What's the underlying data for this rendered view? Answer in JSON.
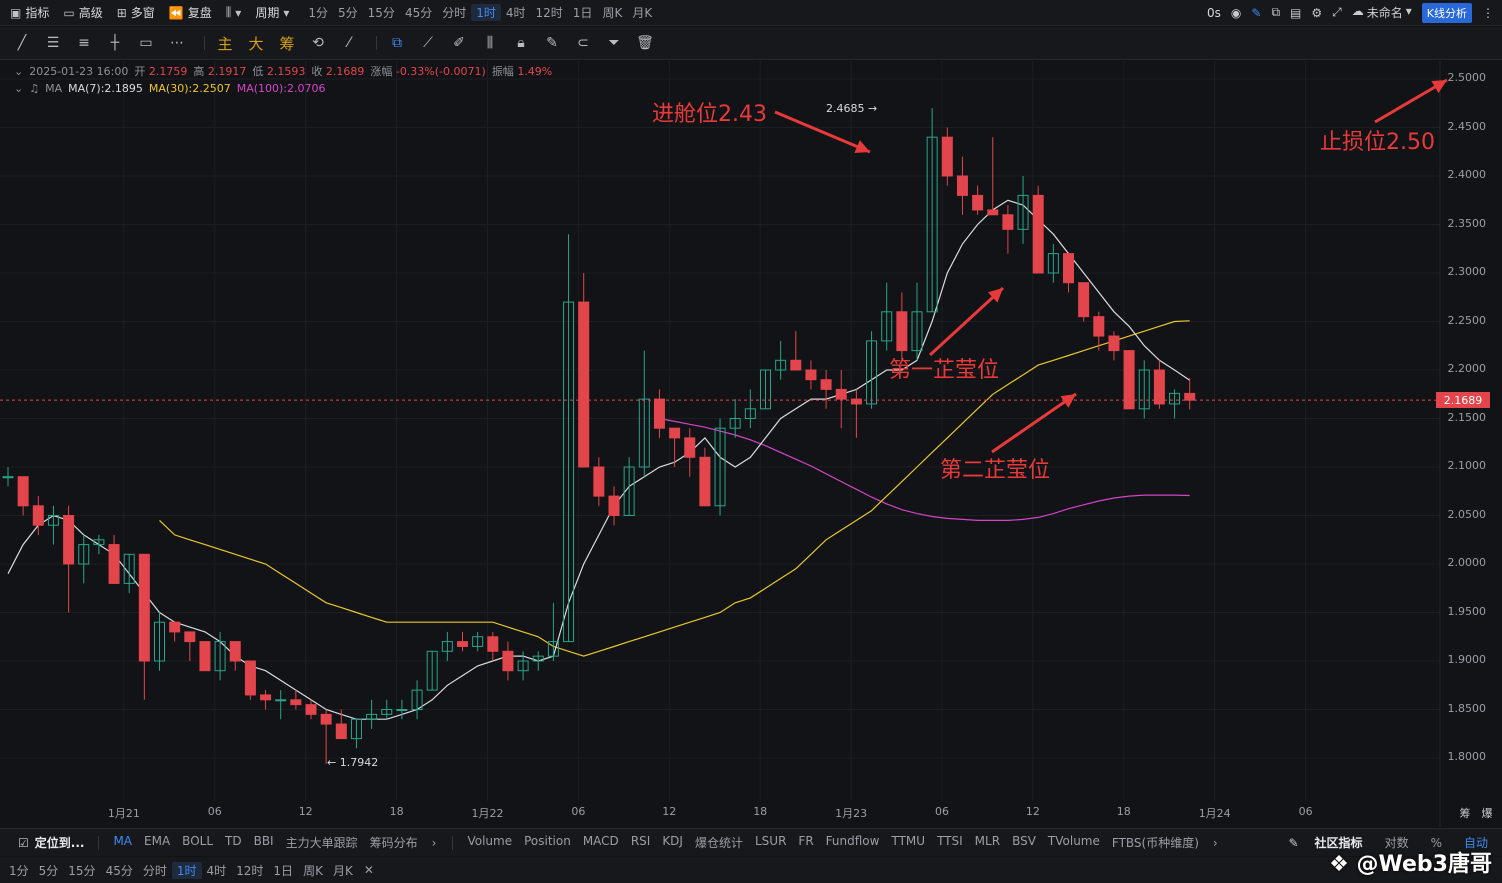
{
  "topbar": {
    "indicator": "指标",
    "advanced": "高级",
    "multi_window": "多窗",
    "replay": "复盘",
    "period": "周期",
    "intervals": [
      "1分",
      "5分",
      "15分",
      "45分",
      "分时",
      "1时",
      "4时",
      "12时",
      "1日",
      "周K",
      "月K"
    ],
    "active_interval": "1时",
    "countdown": "0s",
    "layout_name": "未命名",
    "kline_analysis": "K线分析"
  },
  "drawbar": {
    "main_label": "主",
    "big_label": "大",
    "chip_label": "筹"
  },
  "legend": {
    "datetime": "2025-01-23 16:00",
    "open_label": "开",
    "open": "2.1759",
    "high_label": "高",
    "high": "2.1917",
    "low_label": "低",
    "low": "2.1593",
    "close_label": "收",
    "close": "2.1689",
    "change_label": "涨幅",
    "change": "-0.33%(-0.0071)",
    "amp_label": "振幅",
    "amp": "1.49%",
    "ma_title": "MA",
    "ma7": "MA(7):2.1895",
    "ma30": "MA(30):2.2507",
    "ma100": "MA(100):2.0706"
  },
  "price_tag": "2.1689",
  "markers": {
    "high": "2.4685 →",
    "low": "← 1.7942"
  },
  "annotations": {
    "entry": "进舱位2.43",
    "stop": "止损位2.50",
    "first": "第一芷莹位",
    "second": "第二芷莹位"
  },
  "indicators_bar": {
    "locate": "定位到...",
    "main_inds": [
      "MA",
      "EMA",
      "BOLL",
      "TD",
      "BBI",
      "主力大单跟踪",
      "筹码分布"
    ],
    "sub_inds": [
      "Volume",
      "Position",
      "MACD",
      "RSI",
      "KDJ",
      "爆仓统计",
      "LSUR",
      "FR",
      "Fundflow",
      "TTMU",
      "TTSI",
      "MLR",
      "BSV",
      "TVolume",
      "FTBS(币种维度)"
    ],
    "community": "社区指标",
    "log": "对数",
    "percent": "%",
    "auto": "自动"
  },
  "bottom_intervals": [
    "1分",
    "5分",
    "15分",
    "45分",
    "分时",
    "1时",
    "4时",
    "12时",
    "1日",
    "周K",
    "月K"
  ],
  "watermark": "@Web3唐哥",
  "colors": {
    "up": "#27a58a",
    "down": "#e3454c",
    "ma7": "#d9dbe0",
    "ma30": "#e8c62e",
    "ma100": "#d544c8",
    "annot": "#e83a3a"
  },
  "chart_data": {
    "type": "candlestick",
    "interval": "1h",
    "ylim": [
      1.77,
      2.52
    ],
    "y_ticks": [
      "2.5000",
      "2.4500",
      "2.4000",
      "2.3500",
      "2.3000",
      "2.2500",
      "2.2000",
      "2.1500",
      "2.1000",
      "2.0500",
      "2.0000",
      "1.9500",
      "1.9000",
      "1.8500",
      "1.8000"
    ],
    "x_ticks": [
      {
        "label": "1月21",
        "h": 6
      },
      {
        "label": "06",
        "h": 12
      },
      {
        "label": "12",
        "h": 18
      },
      {
        "label": "18",
        "h": 24
      },
      {
        "label": "1月22",
        "h": 30
      },
      {
        "label": "06",
        "h": 36
      },
      {
        "label": "12",
        "h": 42
      },
      {
        "label": "18",
        "h": 48
      },
      {
        "label": "1月23",
        "h": 54
      },
      {
        "label": "06",
        "h": 60
      },
      {
        "label": "12",
        "h": 66
      },
      {
        "label": "18",
        "h": 72
      },
      {
        "label": "1月24",
        "h": 78
      },
      {
        "label": "06",
        "h": 84
      }
    ],
    "right_labels": [
      "筹",
      "爆"
    ],
    "candles": [
      [
        2.09,
        2.1,
        2.08,
        2.09
      ],
      [
        2.09,
        2.09,
        2.05,
        2.06
      ],
      [
        2.06,
        2.07,
        2.03,
        2.04
      ],
      [
        2.04,
        2.06,
        2.02,
        2.05
      ],
      [
        2.05,
        2.06,
        1.95,
        2.0
      ],
      [
        2.0,
        2.03,
        1.98,
        2.02
      ],
      [
        2.02,
        2.03,
        2.01,
        2.025
      ],
      [
        2.02,
        2.03,
        1.98,
        1.98
      ],
      [
        1.98,
        2.01,
        1.97,
        2.01
      ],
      [
        2.01,
        2.01,
        1.86,
        1.9
      ],
      [
        1.9,
        1.95,
        1.89,
        1.94
      ],
      [
        1.94,
        1.94,
        1.92,
        1.93
      ],
      [
        1.93,
        1.93,
        1.9,
        1.92
      ],
      [
        1.92,
        1.92,
        1.89,
        1.89
      ],
      [
        1.89,
        1.93,
        1.88,
        1.92
      ],
      [
        1.92,
        1.92,
        1.89,
        1.9
      ],
      [
        1.9,
        1.9,
        1.86,
        1.865
      ],
      [
        1.865,
        1.87,
        1.85,
        1.86
      ],
      [
        1.86,
        1.87,
        1.84,
        1.86
      ],
      [
        1.86,
        1.87,
        1.85,
        1.855
      ],
      [
        1.855,
        1.86,
        1.84,
        1.845
      ],
      [
        1.845,
        1.85,
        1.794,
        1.835
      ],
      [
        1.835,
        1.85,
        1.82,
        1.82
      ],
      [
        1.82,
        1.84,
        1.81,
        1.84
      ],
      [
        1.84,
        1.86,
        1.83,
        1.845
      ],
      [
        1.845,
        1.86,
        1.84,
        1.85
      ],
      [
        1.85,
        1.86,
        1.84,
        1.85
      ],
      [
        1.85,
        1.88,
        1.84,
        1.87
      ],
      [
        1.87,
        1.91,
        1.87,
        1.91
      ],
      [
        1.91,
        1.93,
        1.9,
        1.92
      ],
      [
        1.92,
        1.93,
        1.91,
        1.915
      ],
      [
        1.915,
        1.93,
        1.91,
        1.925
      ],
      [
        1.925,
        1.93,
        1.9,
        1.91
      ],
      [
        1.91,
        1.92,
        1.88,
        1.89
      ],
      [
        1.89,
        1.91,
        1.88,
        1.9
      ],
      [
        1.9,
        1.91,
        1.89,
        1.905
      ],
      [
        1.905,
        1.96,
        1.9,
        1.92
      ],
      [
        1.92,
        2.34,
        1.92,
        2.27
      ],
      [
        2.27,
        2.3,
        2.1,
        2.1
      ],
      [
        2.1,
        2.11,
        2.06,
        2.07
      ],
      [
        2.07,
        2.08,
        2.04,
        2.05
      ],
      [
        2.05,
        2.11,
        2.05,
        2.1
      ],
      [
        2.1,
        2.22,
        2.09,
        2.17
      ],
      [
        2.17,
        2.18,
        2.13,
        2.14
      ],
      [
        2.14,
        2.14,
        2.1,
        2.13
      ],
      [
        2.13,
        2.14,
        2.09,
        2.11
      ],
      [
        2.11,
        2.12,
        2.06,
        2.06
      ],
      [
        2.06,
        2.15,
        2.05,
        2.14
      ],
      [
        2.14,
        2.17,
        2.13,
        2.15
      ],
      [
        2.15,
        2.18,
        2.14,
        2.16
      ],
      [
        2.16,
        2.2,
        2.16,
        2.2
      ],
      [
        2.2,
        2.23,
        2.19,
        2.21
      ],
      [
        2.21,
        2.24,
        2.2,
        2.2
      ],
      [
        2.2,
        2.21,
        2.18,
        2.19
      ],
      [
        2.19,
        2.2,
        2.16,
        2.18
      ],
      [
        2.18,
        2.2,
        2.14,
        2.17
      ],
      [
        2.17,
        2.18,
        2.13,
        2.165
      ],
      [
        2.165,
        2.24,
        2.16,
        2.23
      ],
      [
        2.23,
        2.29,
        2.22,
        2.26
      ],
      [
        2.26,
        2.28,
        2.21,
        2.22
      ],
      [
        2.22,
        2.29,
        2.21,
        2.26
      ],
      [
        2.26,
        2.47,
        2.26,
        2.44
      ],
      [
        2.44,
        2.45,
        2.39,
        2.4
      ],
      [
        2.4,
        2.42,
        2.36,
        2.38
      ],
      [
        2.38,
        2.39,
        2.36,
        2.365
      ],
      [
        2.365,
        2.44,
        2.36,
        2.36
      ],
      [
        2.36,
        2.37,
        2.32,
        2.345
      ],
      [
        2.345,
        2.4,
        2.33,
        2.38
      ],
      [
        2.38,
        2.39,
        2.3,
        2.3
      ],
      [
        2.3,
        2.33,
        2.29,
        2.32
      ],
      [
        2.32,
        2.32,
        2.28,
        2.29
      ],
      [
        2.29,
        2.29,
        2.25,
        2.255
      ],
      [
        2.255,
        2.26,
        2.22,
        2.235
      ],
      [
        2.235,
        2.24,
        2.21,
        2.22
      ],
      [
        2.22,
        2.22,
        2.16,
        2.16
      ],
      [
        2.16,
        2.21,
        2.15,
        2.2
      ],
      [
        2.2,
        2.21,
        2.16,
        2.165
      ],
      [
        2.165,
        2.18,
        2.15,
        2.1759
      ],
      [
        2.1759,
        2.1917,
        2.1593,
        2.1689
      ]
    ],
    "ma7": [
      1.99,
      2.02,
      2.04,
      2.05,
      2.045,
      2.03,
      2.02,
      2.01,
      1.99,
      1.97,
      1.95,
      1.94,
      1.935,
      1.93,
      1.92,
      1.905,
      1.895,
      1.89,
      1.88,
      1.87,
      1.86,
      1.85,
      1.845,
      1.84,
      1.84,
      1.84,
      1.845,
      1.85,
      1.86,
      1.875,
      1.885,
      1.895,
      1.9,
      1.905,
      1.905,
      1.9,
      1.905,
      1.96,
      2.0,
      2.03,
      2.06,
      2.08,
      2.09,
      2.1,
      2.105,
      2.115,
      2.13,
      2.11,
      2.1,
      2.11,
      2.13,
      2.15,
      2.16,
      2.17,
      2.17,
      2.175,
      2.18,
      2.19,
      2.2,
      2.2,
      2.21,
      2.25,
      2.3,
      2.33,
      2.35,
      2.365,
      2.375,
      2.37,
      2.355,
      2.34,
      2.32,
      2.3,
      2.28,
      2.26,
      2.245,
      2.225,
      2.21,
      2.2,
      2.1895
    ],
    "ma30": [
      2.045,
      2.03,
      2.025,
      2.02,
      2.015,
      2.01,
      2.005,
      2.0,
      1.99,
      1.98,
      1.97,
      1.96,
      1.955,
      1.95,
      1.945,
      1.94,
      1.94,
      1.94,
      1.94,
      1.94,
      1.94,
      1.94,
      1.94,
      1.935,
      1.93,
      1.925,
      1.915,
      1.91,
      1.905,
      1.91,
      1.915,
      1.92,
      1.925,
      1.93,
      1.935,
      1.94,
      1.945,
      1.95,
      1.96,
      1.965,
      1.975,
      1.985,
      1.995,
      2.01,
      2.025,
      2.035,
      2.045,
      2.055,
      2.07,
      2.085,
      2.1,
      2.115,
      2.13,
      2.145,
      2.16,
      2.175,
      2.185,
      2.195,
      2.205,
      2.21,
      2.215,
      2.22,
      2.225,
      2.23,
      2.235,
      2.24,
      2.245,
      2.25,
      2.2507
    ],
    "ma100": [
      2.15,
      2.147,
      2.144,
      2.141,
      2.137,
      2.133,
      2.128,
      2.122,
      2.115,
      2.108,
      2.101,
      2.093,
      2.085,
      2.077,
      2.069,
      2.062,
      2.056,
      2.052,
      2.049,
      2.047,
      2.046,
      2.045,
      2.045,
      2.045,
      2.046,
      2.048,
      2.052,
      2.057,
      2.061,
      2.065,
      2.068,
      2.07,
      2.071,
      2.071,
      2.071,
      2.0706
    ]
  }
}
